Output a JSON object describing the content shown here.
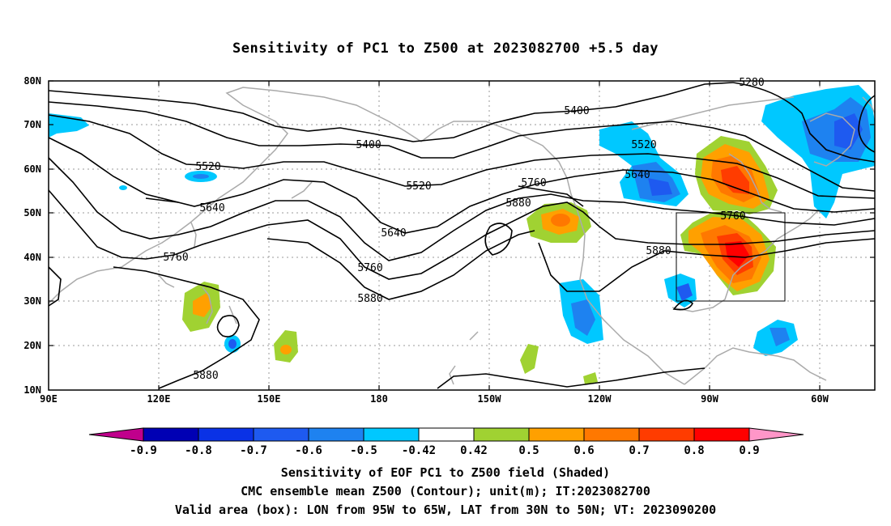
{
  "title": "Sensitivity of PC1 to Z500 at 2023082700 +5.5 day",
  "lat_labels": [
    "80N",
    "70N",
    "60N",
    "50N",
    "40N",
    "30N",
    "20N",
    "10N"
  ],
  "lon_labels": [
    "90E",
    "120E",
    "150E",
    "180",
    "150W",
    "120W",
    "90W",
    "60W"
  ],
  "contour_labels": [
    {
      "text": "5280"
    },
    {
      "text": "5400"
    },
    {
      "text": "5400"
    },
    {
      "text": "5520"
    },
    {
      "text": "5520"
    },
    {
      "text": "5520"
    },
    {
      "text": "5640"
    },
    {
      "text": "5640"
    },
    {
      "text": "5640"
    },
    {
      "text": "5760"
    },
    {
      "text": "5760"
    },
    {
      "text": "5760"
    },
    {
      "text": "5760"
    },
    {
      "text": "5880"
    },
    {
      "text": "5880"
    },
    {
      "text": "5880"
    },
    {
      "text": "5880"
    }
  ],
  "colorbar": {
    "labels": [
      "-0.9",
      "-0.8",
      "-0.7",
      "-0.6",
      "-0.5",
      "-0.42",
      "0.42",
      "0.5",
      "0.6",
      "0.7",
      "0.8",
      "0.9"
    ],
    "colors": [
      "#c0008c",
      "#0000b4",
      "#0a32e6",
      "#1e5af0",
      "#1e82f0",
      "#00c8ff",
      "#ffffff",
      "#a0d232",
      "#ffa000",
      "#ff7800",
      "#ff3c00",
      "#ff0000",
      "#ff96c8"
    ]
  },
  "valid_box": {
    "lon_min": "95W",
    "lon_max": "65W",
    "lat_min": "30N",
    "lat_max": "50N"
  },
  "captions": [
    "Sensitivity of EOF PC1 to Z500 field (Shaded)",
    "CMC ensemble mean Z500 (Contour); unit(m); IT:2023082700",
    "Valid area (box): LON from 95W to 65W, LAT from 30N to 50N; VT: 2023090200"
  ]
}
